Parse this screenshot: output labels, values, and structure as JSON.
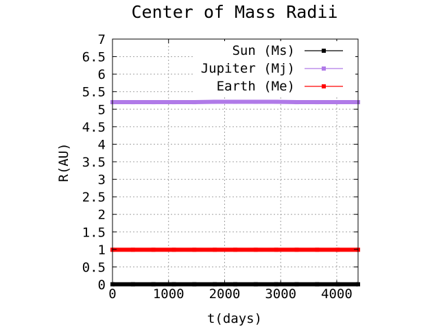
{
  "chart_data": {
    "type": "line",
    "title": "Center of Mass Radii",
    "xlabel": "t(days)",
    "ylabel": "R(AU)",
    "xlim": [
      0,
      4380
    ],
    "ylim": [
      0,
      7
    ],
    "xticks": [
      0,
      1000,
      2000,
      3000,
      4000
    ],
    "yticks": [
      0,
      0.5,
      1,
      1.5,
      2,
      2.5,
      3,
      3.5,
      4,
      4.5,
      5,
      5.5,
      6,
      6.5,
      7
    ],
    "xtick_labels": [
      "0",
      "1000",
      "2000",
      "3000",
      "4000"
    ],
    "ytick_labels": [
      "0",
      "0.5",
      "1",
      "1.5",
      "2",
      "2.5",
      "3",
      "3.5",
      "4",
      "4.5",
      "5",
      "5.5",
      "6",
      "6.5",
      "7"
    ],
    "grid": true,
    "legend_position": "top-right",
    "series": [
      {
        "name": "Sun (Ms)",
        "color": "#000000",
        "x": [
          0,
          365,
          730,
          1095,
          1460,
          1825,
          2190,
          2555,
          2920,
          3285,
          3650,
          4015,
          4380
        ],
        "y": [
          0.005,
          0.005,
          0.005,
          0.005,
          0.005,
          0.005,
          0.005,
          0.005,
          0.005,
          0.005,
          0.005,
          0.005,
          0.005
        ]
      },
      {
        "name": "Jupiter (Mj)",
        "color": "#b07ae8",
        "x": [
          0,
          365,
          730,
          1095,
          1460,
          1825,
          2190,
          2555,
          2920,
          3285,
          3650,
          4015,
          4380
        ],
        "y": [
          5.2,
          5.2,
          5.2,
          5.2,
          5.2,
          5.21,
          5.21,
          5.21,
          5.21,
          5.2,
          5.2,
          5.2,
          5.2
        ]
      },
      {
        "name": "Earth (Me)",
        "color": "#ff0000",
        "x": [
          0,
          365,
          730,
          1095,
          1460,
          1825,
          2190,
          2555,
          2920,
          3285,
          3650,
          4015,
          4380
        ],
        "y": [
          0.99,
          0.99,
          0.99,
          0.99,
          0.99,
          0.99,
          0.99,
          0.99,
          0.99,
          0.99,
          0.99,
          0.99,
          0.99
        ]
      }
    ]
  }
}
